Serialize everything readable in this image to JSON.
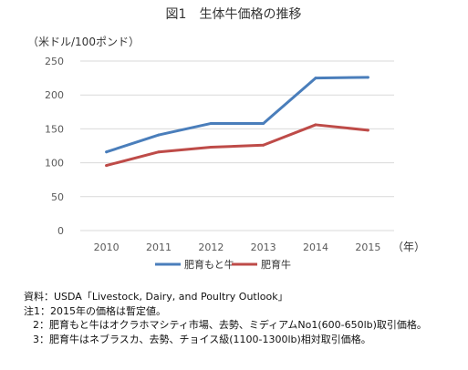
{
  "chart_data": {
    "type": "line",
    "title": "図1　生体牛価格の推移",
    "ylabel": "（米ドル/100ポンド）",
    "xlabel": "（年）",
    "x": [
      "2010",
      "2011",
      "2012",
      "2013",
      "2014",
      "2015"
    ],
    "ylim": [
      0,
      250
    ],
    "yticks": [
      "0",
      "50",
      "100",
      "150",
      "200",
      "250"
    ],
    "grid": "horizontal",
    "legend_position": "bottom",
    "series": [
      {
        "name": "肥育もと牛",
        "color": "#4a7ebb",
        "values": [
          116,
          141,
          158,
          158,
          225,
          226
        ]
      },
      {
        "name": "肥育牛",
        "color": "#be4b48",
        "values": [
          96,
          116,
          123,
          126,
          156,
          148
        ]
      }
    ]
  },
  "notes": [
    "資料：USDA「Livestock, Dairy, and Poultry Outlook」",
    "注1：2015年の価格は暫定値。",
    "2：肥育もと牛はオクラホマシティ市場、去勢、ミディアムNo1(600-650lb)取引価格。",
    "3：肥育牛はネブラスカ、去勢、チョイス級(1100-1300lb)相対取引価格。"
  ]
}
